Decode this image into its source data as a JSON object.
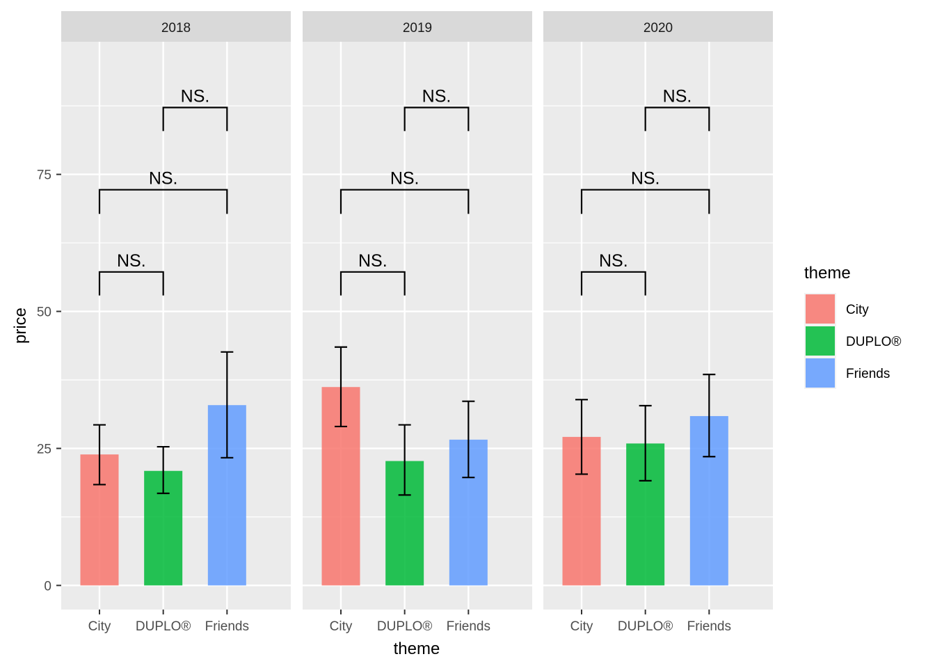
{
  "chart_data": {
    "type": "bar",
    "xlabel": "theme",
    "ylabel": "price",
    "ylim": [
      -4.4,
      99.2
    ],
    "y_ticks": [
      0,
      25,
      50,
      75
    ],
    "y_tick_labels": [
      "0",
      "25",
      "50",
      "75"
    ],
    "grid": true,
    "legend": {
      "title": "theme",
      "position": "right",
      "entries": [
        "City",
        "DUPLO®",
        "Friends"
      ]
    },
    "categories": [
      "City",
      "DUPLO®",
      "Friends"
    ],
    "colors": [
      "#F8766D",
      "#00BA38",
      "#619CFF"
    ],
    "bar_opacity": 0.85,
    "facets": [
      {
        "label": "2018",
        "values": [
          23.9,
          20.9,
          32.9
        ],
        "err_low": [
          18.4,
          16.8,
          23.3
        ],
        "err_high": [
          29.3,
          25.3,
          42.6
        ]
      },
      {
        "label": "2019",
        "values": [
          36.2,
          22.7,
          26.6
        ],
        "err_low": [
          29.0,
          16.5,
          19.7
        ],
        "err_high": [
          43.5,
          29.3,
          33.6
        ]
      },
      {
        "label": "2020",
        "values": [
          27.1,
          25.9,
          30.9
        ],
        "err_low": [
          20.3,
          19.1,
          23.5
        ],
        "err_high": [
          33.9,
          32.8,
          38.5
        ]
      }
    ],
    "comparisons": [
      {
        "from": 0,
        "to": 1,
        "label": "NS.",
        "y_top": 57.2,
        "y_bottom": 52.9
      },
      {
        "from": 0,
        "to": 2,
        "label": "NS.",
        "y_top": 72.2,
        "y_bottom": 67.8
      },
      {
        "from": 1,
        "to": 2,
        "label": "NS.",
        "y_top": 87.2,
        "y_bottom": 82.9
      }
    ]
  }
}
